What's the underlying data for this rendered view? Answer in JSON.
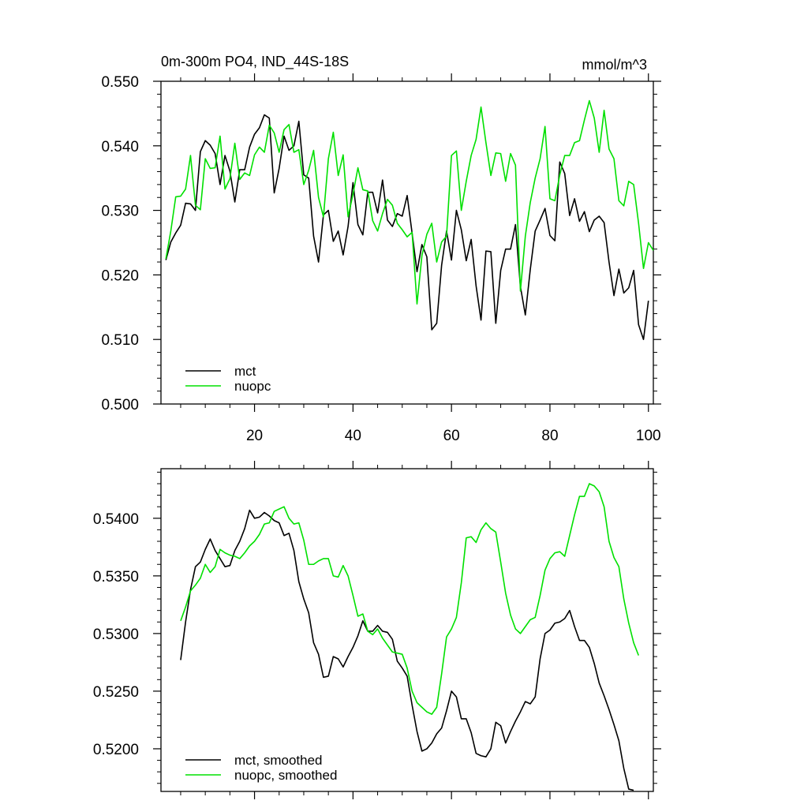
{
  "colors": {
    "mct": "#000000",
    "nuopc": "#00e000",
    "axis": "#000000",
    "background": "#ffffff"
  },
  "chart_data": [
    {
      "type": "line",
      "title": "0m-300m PO4, IND_44S-18S",
      "units": "mmol/m^3",
      "xlim": [
        1,
        101
      ],
      "ylim": [
        0.5,
        0.55
      ],
      "x_ticks": [
        20,
        40,
        60,
        80,
        100
      ],
      "x_tick_labels": [
        "20",
        "40",
        "60",
        "80",
        "100"
      ],
      "y_ticks": [
        0.5,
        0.51,
        0.52,
        0.53,
        0.54,
        0.55
      ],
      "y_tick_labels": [
        "0.500",
        "0.510",
        "0.520",
        "0.530",
        "0.540",
        "0.550"
      ],
      "legend_position": "bottom-left",
      "grid": false,
      "series": [
        {
          "name": "mct",
          "color": "#000000",
          "x_start": 2,
          "values": [
            0.5223,
            0.5251,
            0.5265,
            0.5277,
            0.5311,
            0.531,
            0.53,
            0.5391,
            0.5408,
            0.5401,
            0.5388,
            0.534,
            0.5385,
            0.5361,
            0.5313,
            0.5363,
            0.5363,
            0.5398,
            0.5418,
            0.5428,
            0.5448,
            0.5443,
            0.5327,
            0.5365,
            0.5415,
            0.5393,
            0.54,
            0.5438,
            0.5355,
            0.535,
            0.526,
            0.522,
            0.5293,
            0.53,
            0.5252,
            0.5268,
            0.5231,
            0.5275,
            0.5343,
            0.5278,
            0.5262,
            0.5328,
            0.5328,
            0.5296,
            0.5347,
            0.5285,
            0.5275,
            0.5295,
            0.5291,
            0.5323,
            0.5265,
            0.5205,
            0.5247,
            0.5228,
            0.5115,
            0.5125,
            0.5215,
            0.5268,
            0.5223,
            0.53,
            0.527,
            0.5222,
            0.5255,
            0.5183,
            0.513,
            0.5237,
            0.5236,
            0.5125,
            0.5207,
            0.524,
            0.524,
            0.5278,
            0.5182,
            0.5138,
            0.5208,
            0.5268,
            0.5285,
            0.5303,
            0.5261,
            0.5253,
            0.5375,
            0.5357,
            0.5292,
            0.5318,
            0.5283,
            0.5298,
            0.5267,
            0.5285,
            0.5291,
            0.5281,
            0.522,
            0.5168,
            0.5209,
            0.5172,
            0.518,
            0.5207,
            0.5123,
            0.51,
            0.516
          ]
        },
        {
          "name": "nuopc",
          "color": "#00e000",
          "x_start": 2,
          "values": [
            0.5225,
            0.5268,
            0.5321,
            0.5322,
            0.5333,
            0.5385,
            0.5308,
            0.5301,
            0.538,
            0.5365,
            0.5366,
            0.5415,
            0.5333,
            0.5349,
            0.5404,
            0.5348,
            0.5358,
            0.5354,
            0.5386,
            0.5398,
            0.539,
            0.5432,
            0.542,
            0.539,
            0.5425,
            0.5433,
            0.539,
            0.5394,
            0.534,
            0.5362,
            0.5393,
            0.532,
            0.529,
            0.538,
            0.5421,
            0.5354,
            0.5386,
            0.529,
            0.5325,
            0.5366,
            0.5332,
            0.533,
            0.5284,
            0.5268,
            0.5295,
            0.5317,
            0.5308,
            0.528,
            0.527,
            0.5259,
            0.5266,
            0.5155,
            0.523,
            0.5263,
            0.528,
            0.522,
            0.5251,
            0.526,
            0.5385,
            0.5392,
            0.53,
            0.5345,
            0.5385,
            0.541,
            0.546,
            0.5405,
            0.5354,
            0.5389,
            0.5388,
            0.5345,
            0.5388,
            0.537,
            0.5175,
            0.526,
            0.5312,
            0.535,
            0.538,
            0.543,
            0.5318,
            0.5315,
            0.5355,
            0.5385,
            0.5385,
            0.5405,
            0.5408,
            0.544,
            0.547,
            0.5443,
            0.539,
            0.5455,
            0.5395,
            0.538,
            0.5315,
            0.5307,
            0.5345,
            0.534,
            0.528,
            0.521,
            0.525,
            0.5238
          ]
        }
      ]
    },
    {
      "type": "line",
      "xlim": [
        1,
        101
      ],
      "ylim": [
        0.5163,
        0.5443
      ],
      "x_ticks": [
        20,
        40,
        60,
        80,
        100
      ],
      "y_ticks": [
        0.52,
        0.525,
        0.53,
        0.535,
        0.54
      ],
      "y_tick_labels": [
        "0.5200",
        "0.5250",
        "0.5300",
        "0.5350",
        "0.5400"
      ],
      "legend_position": "bottom-left",
      "grid": false,
      "series": [
        {
          "name": "mct, smoothed",
          "color": "#000000",
          "x_start": 5,
          "values": [
            0.5277,
            0.531,
            0.5338,
            0.5358,
            0.5362,
            0.5373,
            0.5382,
            0.5372,
            0.5365,
            0.5358,
            0.5359,
            0.5372,
            0.538,
            0.5391,
            0.5407,
            0.54,
            0.5401,
            0.5405,
            0.5402,
            0.5398,
            0.5396,
            0.5385,
            0.5387,
            0.5372,
            0.5345,
            0.533,
            0.5318,
            0.5292,
            0.5282,
            0.5262,
            0.5263,
            0.528,
            0.5278,
            0.5271,
            0.528,
            0.5288,
            0.5298,
            0.5311,
            0.5302,
            0.5302,
            0.5307,
            0.5302,
            0.5301,
            0.5295,
            0.5276,
            0.527,
            0.5263,
            0.5238,
            0.5215,
            0.5198,
            0.52,
            0.5205,
            0.5213,
            0.5218,
            0.5233,
            0.525,
            0.5245,
            0.5226,
            0.5226,
            0.5214,
            0.5196,
            0.5194,
            0.5193,
            0.52,
            0.5223,
            0.522,
            0.5205,
            0.5215,
            0.5224,
            0.5232,
            0.5241,
            0.5239,
            0.5245,
            0.5278,
            0.53,
            0.5303,
            0.5309,
            0.531,
            0.5313,
            0.532,
            0.5306,
            0.5294,
            0.5294,
            0.5288,
            0.5274,
            0.5257,
            0.5246,
            0.5234,
            0.5221,
            0.5207,
            0.5183,
            0.5165,
            0.5164
          ]
        },
        {
          "name": "nuopc, smoothed",
          "color": "#00e000",
          "x_start": 5,
          "values": [
            0.5311,
            0.5323,
            0.5337,
            0.5342,
            0.5348,
            0.536,
            0.5353,
            0.5358,
            0.5373,
            0.537,
            0.5368,
            0.5367,
            0.5365,
            0.537,
            0.5376,
            0.538,
            0.5386,
            0.5395,
            0.5396,
            0.5406,
            0.5408,
            0.541,
            0.54,
            0.5395,
            0.5396,
            0.5381,
            0.536,
            0.536,
            0.5363,
            0.5365,
            0.5365,
            0.535,
            0.5349,
            0.5359,
            0.535,
            0.5333,
            0.5315,
            0.5317,
            0.5302,
            0.5299,
            0.5304,
            0.5296,
            0.529,
            0.5284,
            0.5283,
            0.5282,
            0.527,
            0.525,
            0.524,
            0.5236,
            0.5232,
            0.523,
            0.5236,
            0.5265,
            0.5297,
            0.5304,
            0.5314,
            0.5344,
            0.5383,
            0.5384,
            0.5379,
            0.539,
            0.5396,
            0.5391,
            0.5388,
            0.5362,
            0.5335,
            0.5316,
            0.5304,
            0.53,
            0.5306,
            0.5312,
            0.5314,
            0.5333,
            0.5355,
            0.5365,
            0.537,
            0.5371,
            0.5367,
            0.5385,
            0.5403,
            0.5419,
            0.5419,
            0.543,
            0.5428,
            0.5423,
            0.541,
            0.538,
            0.5366,
            0.5358,
            0.533,
            0.5309,
            0.5292,
            0.5281
          ]
        }
      ]
    }
  ]
}
